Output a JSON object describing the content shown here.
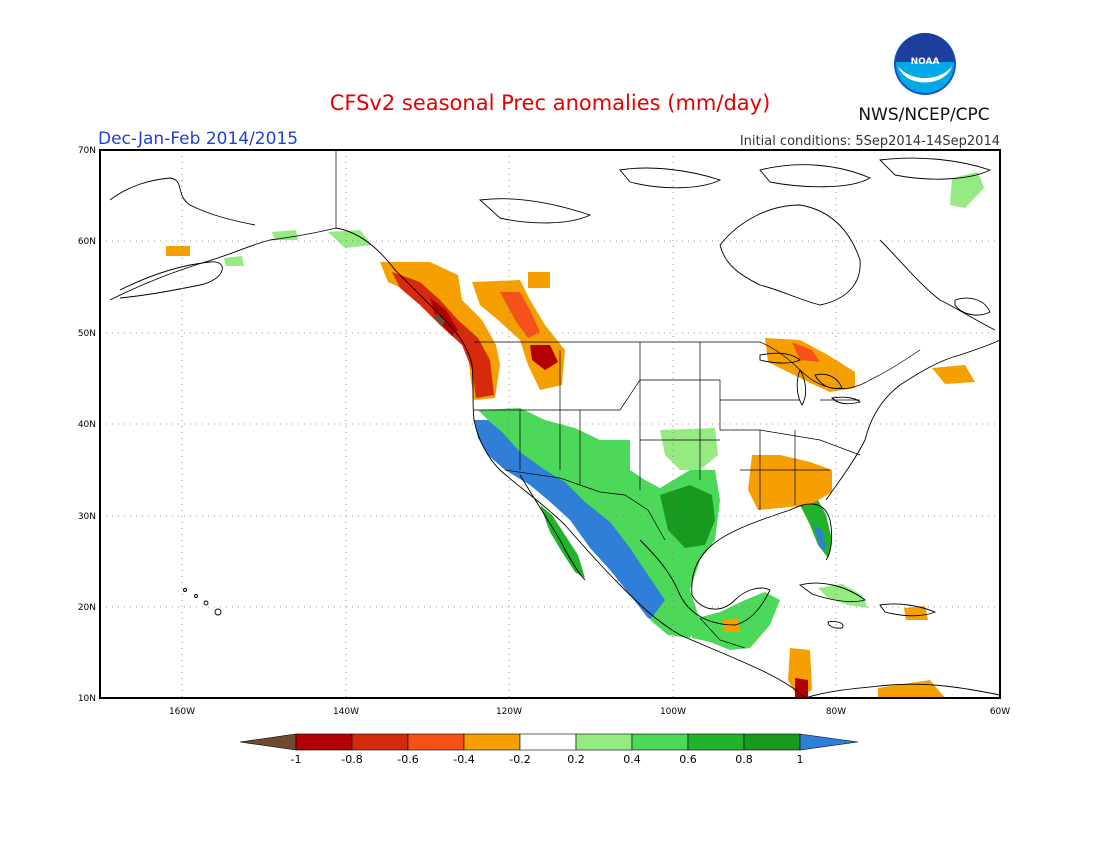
{
  "header": {
    "title": "CFSv2 seasonal Prec anomalies (mm/day)",
    "season": "Dec-Jan-Feb 2014/2015",
    "init_conditions": "Initial conditions: 5Sep2014-14Sep2014",
    "agency": "NWS/NCEP/CPC",
    "logo_text": "NOAA"
  },
  "map": {
    "lat_labels": [
      "70N",
      "60N",
      "50N",
      "40N",
      "30N",
      "20N",
      "10N"
    ],
    "lon_labels": [
      "160W",
      "140W",
      "120W",
      "100W",
      "80W",
      "60W"
    ]
  },
  "colorbar": {
    "labels": [
      "-1",
      "-0.8",
      "-0.6",
      "-0.4",
      "-0.2",
      "0.2",
      "0.4",
      "0.6",
      "0.8",
      "1"
    ],
    "colors": [
      "#6e4a32",
      "#b20000",
      "#d62a0c",
      "#f5521a",
      "#f5a000",
      "#ffffff",
      "#96ea82",
      "#4cd95a",
      "#20b32b",
      "#189a1e",
      "#2f7fd9"
    ]
  },
  "colors": {
    "title": "#e60000",
    "season": "#1f3fd6",
    "wet_strong": "#2f7fd9",
    "wet": "#20b32b",
    "dry": "#f5a000",
    "dry_strong": "#b20000"
  }
}
